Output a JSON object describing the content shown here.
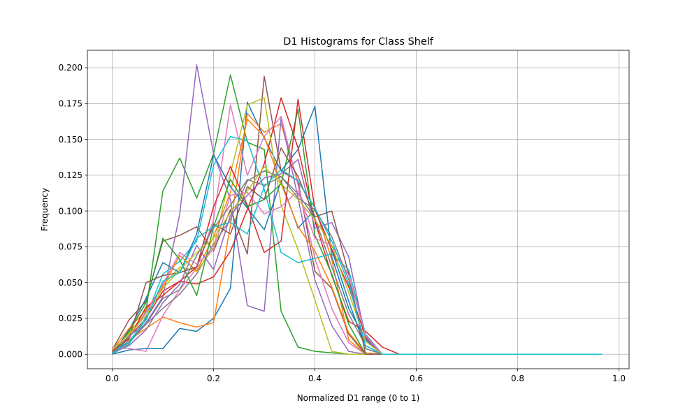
{
  "chart_data": {
    "type": "line",
    "title": "D1 Histograms for Class Shelf",
    "xlabel": "Normalized D1 range (0 to 1)",
    "ylabel": "Frequency",
    "xlim": [
      -0.049,
      1.02
    ],
    "ylim": [
      -0.0101,
      0.2122
    ],
    "xticks": [
      0.0,
      0.2,
      0.4,
      0.6,
      0.8,
      1.0
    ],
    "xtick_labels": [
      "0.0",
      "0.2",
      "0.4",
      "0.6",
      "0.8",
      "1.0"
    ],
    "yticks": [
      0.0,
      0.025,
      0.05,
      0.075,
      0.1,
      0.125,
      0.15,
      0.175,
      0.2
    ],
    "ytick_labels": [
      "0.000",
      "0.025",
      "0.050",
      "0.075",
      "0.100",
      "0.125",
      "0.150",
      "0.175",
      "0.200"
    ],
    "grid": true,
    "legend": "none",
    "colors": [
      "#1f77b4",
      "#ff7f0e",
      "#2ca02c",
      "#d62728",
      "#9467bd",
      "#8c564b",
      "#e377c2",
      "#7f7f7f",
      "#bcbd22",
      "#17becf"
    ],
    "x": [
      0.0,
      0.0333,
      0.0667,
      0.1,
      0.1333,
      0.1667,
      0.2,
      0.2333,
      0.2667,
      0.3,
      0.3333,
      0.3667,
      0.4,
      0.4333,
      0.4667,
      0.5,
      0.5333,
      0.5667,
      0.6,
      0.6333,
      0.6667,
      0.7,
      0.7333,
      0.7667,
      0.8,
      0.8333,
      0.8667,
      0.9,
      0.9333,
      0.9667
    ],
    "series": [
      {
        "values": [
          0.0,
          0.003,
          0.004,
          0.004,
          0.018,
          0.016,
          0.025,
          0.046,
          0.176,
          0.151,
          0.128,
          0.143,
          0.173,
          0.068,
          0.032,
          0.01,
          0.0,
          0.0,
          0.0,
          0.0,
          0.0,
          0.0,
          0.0,
          0.0,
          0.0,
          0.0,
          0.0,
          0.0,
          0.0,
          0.0
        ]
      },
      {
        "values": [
          0.004,
          0.01,
          0.018,
          0.026,
          0.022,
          0.019,
          0.022,
          0.09,
          0.168,
          0.155,
          0.161,
          0.12,
          0.103,
          0.066,
          0.01,
          0.0,
          0.0,
          0.0,
          0.0,
          0.0,
          0.0,
          0.0,
          0.0,
          0.0,
          0.0,
          0.0,
          0.0,
          0.0,
          0.0,
          0.0
        ]
      },
      {
        "values": [
          0.0,
          0.012,
          0.03,
          0.114,
          0.137,
          0.109,
          0.14,
          0.195,
          0.148,
          0.143,
          0.03,
          0.005,
          0.002,
          0.001,
          0.0,
          0.0,
          0.0,
          0.0,
          0.0,
          0.0,
          0.0,
          0.0,
          0.0,
          0.0,
          0.0,
          0.0,
          0.0,
          0.0,
          0.0,
          0.0
        ]
      },
      {
        "values": [
          0.001,
          0.012,
          0.025,
          0.044,
          0.051,
          0.049,
          0.054,
          0.072,
          0.101,
          0.133,
          0.179,
          0.144,
          0.093,
          0.055,
          0.023,
          0.016,
          0.005,
          0.0,
          0.0,
          0.0,
          0.0,
          0.0,
          0.0,
          0.0,
          0.0,
          0.0,
          0.0,
          0.0,
          0.0,
          0.0
        ]
      },
      {
        "values": [
          0.002,
          0.009,
          0.022,
          0.04,
          0.098,
          0.202,
          0.14,
          0.108,
          0.034,
          0.03,
          0.165,
          0.109,
          0.052,
          0.02,
          0.002,
          0.0,
          0.0,
          0.0,
          0.0,
          0.0,
          0.0,
          0.0,
          0.0,
          0.0,
          0.0,
          0.0,
          0.0,
          0.0,
          0.0,
          0.0
        ]
      },
      {
        "values": [
          0.003,
          0.024,
          0.037,
          0.079,
          0.083,
          0.089,
          0.072,
          0.101,
          0.07,
          0.194,
          0.128,
          0.121,
          0.058,
          0.046,
          0.014,
          0.0,
          0.0,
          0.0,
          0.0,
          0.0,
          0.0,
          0.0,
          0.0,
          0.0,
          0.0,
          0.0,
          0.0,
          0.0,
          0.0,
          0.0
        ]
      },
      {
        "values": [
          0.005,
          0.004,
          0.002,
          0.027,
          0.045,
          0.06,
          0.094,
          0.174,
          0.125,
          0.152,
          0.166,
          0.118,
          0.067,
          0.032,
          0.008,
          0.0,
          0.0,
          0.0,
          0.0,
          0.0,
          0.0,
          0.0,
          0.0,
          0.0,
          0.0,
          0.0,
          0.0,
          0.0,
          0.0,
          0.0
        ]
      },
      {
        "values": [
          0.001,
          0.008,
          0.021,
          0.032,
          0.042,
          0.056,
          0.077,
          0.094,
          0.121,
          0.128,
          0.124,
          0.112,
          0.095,
          0.061,
          0.028,
          0.006,
          0.0,
          0.0,
          0.0,
          0.0,
          0.0,
          0.0,
          0.0,
          0.0,
          0.0,
          0.0,
          0.0,
          0.0,
          0.0,
          0.0
        ]
      },
      {
        "values": [
          0.002,
          0.015,
          0.029,
          0.048,
          0.061,
          0.058,
          0.074,
          0.126,
          0.174,
          0.179,
          0.104,
          0.073,
          0.038,
          0.002,
          0.0,
          0.0,
          0.0,
          0.0,
          0.0,
          0.0,
          0.0,
          0.0,
          0.0,
          0.0,
          0.0,
          0.0,
          0.0,
          0.0,
          0.0,
          0.0
        ]
      },
      {
        "values": [
          0.0,
          0.007,
          0.026,
          0.056,
          0.065,
          0.079,
          0.132,
          0.152,
          0.149,
          0.115,
          0.071,
          0.064,
          0.067,
          0.07,
          0.059,
          0.014,
          0.0,
          0.0,
          0.0,
          0.0,
          0.0,
          0.0,
          0.0,
          0.0,
          0.0,
          0.0,
          0.0,
          0.0,
          0.0,
          0.0
        ]
      },
      {
        "values": [
          0.0,
          0.017,
          0.039,
          0.064,
          0.057,
          0.084,
          0.139,
          0.117,
          0.102,
          0.087,
          0.121,
          0.088,
          0.101,
          0.073,
          0.037,
          0.004,
          0.0,
          0.0,
          0.0,
          0.0,
          0.0,
          0.0,
          0.0,
          0.0,
          0.0,
          0.0,
          0.0,
          0.0,
          0.0,
          0.0
        ]
      },
      {
        "values": [
          0.003,
          0.018,
          0.031,
          0.047,
          0.069,
          0.058,
          0.082,
          0.113,
          0.164,
          0.152,
          0.119,
          0.089,
          0.072,
          0.047,
          0.015,
          0.001,
          0.0,
          0.0,
          0.0,
          0.0,
          0.0,
          0.0,
          0.0,
          0.0,
          0.0,
          0.0,
          0.0,
          0.0,
          0.0,
          0.0
        ]
      },
      {
        "values": [
          0.0,
          0.016,
          0.036,
          0.081,
          0.066,
          0.041,
          0.089,
          0.122,
          0.103,
          0.108,
          0.119,
          0.171,
          0.083,
          0.056,
          0.021,
          0.0,
          0.0,
          0.0,
          0.0,
          0.0,
          0.0,
          0.0,
          0.0,
          0.0,
          0.0,
          0.0,
          0.0,
          0.0,
          0.0,
          0.0
        ]
      },
      {
        "values": [
          0.002,
          0.011,
          0.033,
          0.041,
          0.051,
          0.061,
          0.103,
          0.131,
          0.104,
          0.071,
          0.079,
          0.178,
          0.101,
          0.073,
          0.047,
          0.012,
          0.0,
          0.0,
          0.0,
          0.0,
          0.0,
          0.0,
          0.0,
          0.0,
          0.0,
          0.0,
          0.0,
          0.0,
          0.0,
          0.0
        ]
      },
      {
        "values": [
          0.001,
          0.006,
          0.017,
          0.036,
          0.049,
          0.076,
          0.059,
          0.097,
          0.111,
          0.123,
          0.126,
          0.136,
          0.088,
          0.092,
          0.068,
          0.011,
          0.0,
          0.0,
          0.0,
          0.0,
          0.0,
          0.0,
          0.0,
          0.0,
          0.0,
          0.0,
          0.0,
          0.0,
          0.0,
          0.0
        ]
      },
      {
        "values": [
          0.001,
          0.011,
          0.05,
          0.055,
          0.057,
          0.061,
          0.091,
          0.084,
          0.117,
          0.108,
          0.144,
          0.124,
          0.096,
          0.1,
          0.056,
          0.0,
          0.0,
          0.0,
          0.0,
          0.0,
          0.0,
          0.0,
          0.0,
          0.0,
          0.0,
          0.0,
          0.0,
          0.0,
          0.0,
          0.0
        ]
      },
      {
        "values": [
          0.004,
          0.012,
          0.029,
          0.049,
          0.071,
          0.063,
          0.073,
          0.111,
          0.113,
          0.098,
          0.103,
          0.114,
          0.081,
          0.076,
          0.055,
          0.013,
          0.0,
          0.0,
          0.0,
          0.0,
          0.0,
          0.0,
          0.0,
          0.0,
          0.0,
          0.0,
          0.0,
          0.0,
          0.0,
          0.0
        ]
      },
      {
        "values": [
          0.0,
          0.013,
          0.021,
          0.039,
          0.045,
          0.069,
          0.088,
          0.104,
          0.122,
          0.118,
          0.124,
          0.109,
          0.101,
          0.082,
          0.052,
          0.004,
          0.0,
          0.0,
          0.0,
          0.0,
          0.0,
          0.0,
          0.0,
          0.0,
          0.0,
          0.0,
          0.0,
          0.0,
          0.0,
          0.0
        ]
      },
      {
        "values": [
          0.003,
          0.014,
          0.027,
          0.046,
          0.059,
          0.071,
          0.081,
          0.099,
          0.114,
          0.131,
          0.119,
          0.108,
          0.094,
          0.076,
          0.043,
          0.009,
          0.0,
          0.0,
          0.0,
          0.0,
          0.0,
          0.0,
          0.0,
          0.0,
          0.0,
          0.0,
          0.0,
          0.0,
          0.0,
          0.0
        ]
      },
      {
        "values": [
          0.001,
          0.009,
          0.024,
          0.051,
          0.057,
          0.081,
          0.089,
          0.092,
          0.084,
          0.117,
          0.129,
          0.121,
          0.102,
          0.079,
          0.049,
          0.006,
          0.0,
          0.0,
          0.0,
          0.0,
          0.0,
          0.0,
          0.0,
          0.0,
          0.0,
          0.0,
          0.0,
          0.0,
          0.0,
          0.0
        ]
      }
    ]
  }
}
